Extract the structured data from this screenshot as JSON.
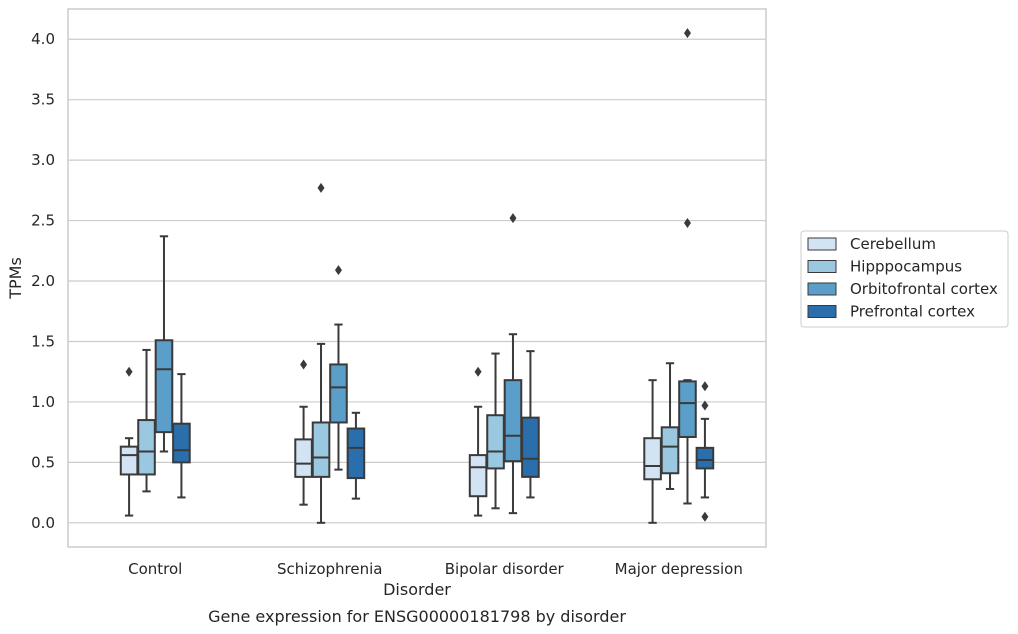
{
  "chart_data": {
    "type": "boxplot",
    "title": "",
    "caption": "Gene expression for ENSG00000181798 by disorder",
    "xlabel": "Disorder",
    "ylabel": "TPMs",
    "ylim": [
      -0.2,
      4.25
    ],
    "yticks": [
      0.0,
      0.5,
      1.0,
      1.5,
      2.0,
      2.5,
      3.0,
      3.5,
      4.0
    ],
    "ytick_labels": [
      "0.0",
      "0.5",
      "1.0",
      "1.5",
      "2.0",
      "2.5",
      "3.0",
      "3.5",
      "4.0"
    ],
    "grid": true,
    "legend_position": "right",
    "categories": [
      "Control",
      "Schizophrenia",
      "Bipolar disorder",
      "Major depression"
    ],
    "series": [
      {
        "name": "Cerebellum",
        "color": "#d2e3f3",
        "boxes": [
          {
            "whisker_low": 0.06,
            "q1": 0.4,
            "median": 0.56,
            "q3": 0.63,
            "whisker_high": 0.7,
            "outliers": [
              1.25
            ]
          },
          {
            "whisker_low": 0.15,
            "q1": 0.38,
            "median": 0.49,
            "q3": 0.69,
            "whisker_high": 0.96,
            "outliers": [
              1.31
            ]
          },
          {
            "whisker_low": 0.06,
            "q1": 0.22,
            "median": 0.46,
            "q3": 0.56,
            "whisker_high": 0.96,
            "outliers": [
              1.25
            ]
          },
          {
            "whisker_low": 0.0,
            "q1": 0.36,
            "median": 0.47,
            "q3": 0.7,
            "whisker_high": 1.18,
            "outliers": []
          }
        ]
      },
      {
        "name": "Hipppocampus",
        "color": "#9ac8e0",
        "boxes": [
          {
            "whisker_low": 0.26,
            "q1": 0.4,
            "median": 0.59,
            "q3": 0.85,
            "whisker_high": 1.43,
            "outliers": []
          },
          {
            "whisker_low": 0.0,
            "q1": 0.38,
            "median": 0.54,
            "q3": 0.83,
            "whisker_high": 1.48,
            "outliers": [
              2.77
            ]
          },
          {
            "whisker_low": 0.12,
            "q1": 0.45,
            "median": 0.59,
            "q3": 0.89,
            "whisker_high": 1.4,
            "outliers": []
          },
          {
            "whisker_low": 0.28,
            "q1": 0.41,
            "median": 0.63,
            "q3": 0.79,
            "whisker_high": 1.32,
            "outliers": []
          }
        ]
      },
      {
        "name": "Orbitofrontal cortex",
        "color": "#5a9ec9",
        "boxes": [
          {
            "whisker_low": 0.59,
            "q1": 0.75,
            "median": 1.27,
            "q3": 1.51,
            "whisker_high": 2.37,
            "outliers": []
          },
          {
            "whisker_low": 0.44,
            "q1": 0.83,
            "median": 1.12,
            "q3": 1.31,
            "whisker_high": 1.64,
            "outliers": [
              2.09
            ]
          },
          {
            "whisker_low": 0.08,
            "q1": 0.51,
            "median": 0.72,
            "q3": 1.18,
            "whisker_high": 1.56,
            "outliers": [
              2.52
            ]
          },
          {
            "whisker_low": 0.16,
            "q1": 0.71,
            "median": 0.99,
            "q3": 1.17,
            "whisker_high": 1.18,
            "outliers": [
              2.48,
              4.05
            ]
          }
        ]
      },
      {
        "name": "Prefrontal cortex",
        "color": "#2a6fac",
        "boxes": [
          {
            "whisker_low": 0.21,
            "q1": 0.5,
            "median": 0.6,
            "q3": 0.82,
            "whisker_high": 1.23,
            "outliers": []
          },
          {
            "whisker_low": 0.2,
            "q1": 0.37,
            "median": 0.62,
            "q3": 0.78,
            "whisker_high": 0.91,
            "outliers": []
          },
          {
            "whisker_low": 0.21,
            "q1": 0.38,
            "median": 0.53,
            "q3": 0.87,
            "whisker_high": 1.42,
            "outliers": []
          },
          {
            "whisker_low": 0.21,
            "q1": 0.45,
            "median": 0.52,
            "q3": 0.62,
            "whisker_high": 0.86,
            "outliers": [
              0.05,
              0.97,
              1.13
            ]
          }
        ]
      }
    ]
  }
}
